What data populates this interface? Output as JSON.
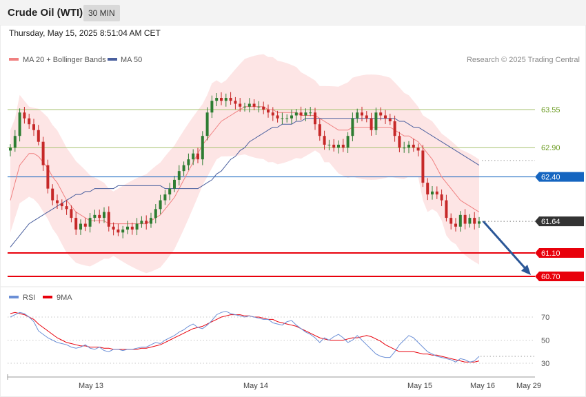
{
  "header": {
    "title": "Crude Oil (WTI)",
    "interval": "30 MIN",
    "datetime": "Thursday, May 15, 2025 8:51:04 AM CET"
  },
  "copyright": "Research © 2025 Trading Central",
  "colors": {
    "bollinger_fill": "#fde0e0",
    "ma20": "#f08080",
    "ma50": "#4a5f9e",
    "up_candle": "#2e7d32",
    "down_candle": "#c62828",
    "resistance": "#a6c26e",
    "pivot": "#1565c0",
    "support": "#e8000b",
    "last": "#333333",
    "rsi": "#6b8fd6",
    "rsi_ma": "#e8000b",
    "arrow": "#2b5797"
  },
  "chart_data": [
    {
      "type": "candlestick",
      "legend": [
        {
          "name": "MA 20 + Bollinger Bands",
          "color": "#f08080"
        },
        {
          "name": "MA 50",
          "color": "#4a5f9e"
        }
      ],
      "legend_placement": "top-left",
      "x_ticks": [
        "May 13",
        "May 14",
        "May 15",
        "May 16",
        "May 29"
      ],
      "ylim": [
        60.6,
        64.5
      ],
      "levels": [
        {
          "value": 63.55,
          "label": "63.55",
          "kind": "resistance"
        },
        {
          "value": 62.9,
          "label": "62.90",
          "kind": "resistance"
        },
        {
          "value": 62.4,
          "label": "62.40",
          "kind": "pivot"
        },
        {
          "value": 61.64,
          "label": "61.64",
          "kind": "last"
        },
        {
          "value": 61.1,
          "label": "61.10",
          "kind": "support"
        },
        {
          "value": 60.7,
          "label": "60.70",
          "kind": "support"
        }
      ],
      "close": [
        62.9,
        63.1,
        63.5,
        63.4,
        63.3,
        63.2,
        63.0,
        62.6,
        62.2,
        62.0,
        61.95,
        61.9,
        61.85,
        61.7,
        61.5,
        61.6,
        61.55,
        61.7,
        61.75,
        61.7,
        61.8,
        61.55,
        61.5,
        61.45,
        61.5,
        61.55,
        61.5,
        61.6,
        61.65,
        61.6,
        61.7,
        61.85,
        62.0,
        62.1,
        62.2,
        62.35,
        62.5,
        62.6,
        62.7,
        62.8,
        62.7,
        63.1,
        63.5,
        63.7,
        63.75,
        63.7,
        63.75,
        63.7,
        63.65,
        63.6,
        63.6,
        63.65,
        63.6,
        63.6,
        63.55,
        63.5,
        63.45,
        63.4,
        63.4,
        63.4,
        63.45,
        63.5,
        63.45,
        63.5,
        63.5,
        63.3,
        63.1,
        62.95,
        62.95,
        62.9,
        62.95,
        62.9,
        63.1,
        63.4,
        63.5,
        63.45,
        63.4,
        63.2,
        63.5,
        63.45,
        63.4,
        63.35,
        63.1,
        62.9,
        62.9,
        62.95,
        62.9,
        62.85,
        62.3,
        62.1,
        62.15,
        62.1,
        62.0,
        61.7,
        61.6,
        61.55,
        61.75,
        61.6,
        61.7,
        61.6,
        61.64
      ],
      "series": [
        {
          "name": "MA 20 + Bollinger Bands",
          "values": [
            62.0,
            62.3,
            62.6,
            62.7,
            62.8,
            62.8,
            62.75,
            62.65,
            62.55,
            62.4,
            62.3,
            62.15,
            62.0,
            61.9,
            61.8,
            61.75,
            61.7,
            61.65,
            61.65,
            61.65,
            61.65,
            61.6,
            61.6,
            61.6,
            61.6,
            61.6,
            61.6,
            61.6,
            61.6,
            61.6,
            61.65,
            61.7,
            61.75,
            61.85,
            61.95,
            62.05,
            62.2,
            62.35,
            62.5,
            62.65,
            62.8,
            62.95,
            63.05,
            63.15,
            63.25,
            63.35,
            63.4,
            63.45,
            63.5,
            63.55,
            63.6,
            63.6,
            63.6,
            63.6,
            63.6,
            63.55,
            63.55,
            63.5,
            63.5,
            63.5,
            63.5,
            63.5,
            63.45,
            63.45,
            63.45,
            63.45,
            63.4,
            63.35,
            63.3,
            63.25,
            63.2,
            63.2,
            63.2,
            63.25,
            63.25,
            63.25,
            63.25,
            63.25,
            63.25,
            63.25,
            63.25,
            63.25,
            63.2,
            63.15,
            63.1,
            63.1,
            63.05,
            63.0,
            62.9,
            62.8,
            62.7,
            62.55,
            62.4,
            62.3,
            62.2,
            62.1,
            62.0,
            61.95,
            61.9,
            61.85,
            61.8
          ]
        },
        {
          "name": "MA 50",
          "values": [
            61.2,
            61.3,
            61.4,
            61.5,
            61.6,
            61.65,
            61.7,
            61.75,
            61.8,
            61.85,
            61.9,
            61.95,
            62.0,
            62.05,
            62.1,
            62.1,
            62.15,
            62.15,
            62.2,
            62.2,
            62.2,
            62.2,
            62.2,
            62.25,
            62.25,
            62.25,
            62.25,
            62.25,
            62.25,
            62.25,
            62.25,
            62.25,
            62.25,
            62.2,
            62.2,
            62.2,
            62.2,
            62.2,
            62.2,
            62.2,
            62.2,
            62.25,
            62.3,
            62.35,
            62.45,
            62.5,
            62.6,
            62.7,
            62.75,
            62.85,
            62.9,
            63.0,
            63.05,
            63.1,
            63.15,
            63.2,
            63.25,
            63.25,
            63.3,
            63.3,
            63.3,
            63.35,
            63.35,
            63.4,
            63.4,
            63.4,
            63.4,
            63.4,
            63.4,
            63.4,
            63.4,
            63.4,
            63.4,
            63.4,
            63.4,
            63.4,
            63.4,
            63.4,
            63.4,
            63.4,
            63.4,
            63.4,
            63.4,
            63.35,
            63.35,
            63.3,
            63.25,
            63.25,
            63.2,
            63.15,
            63.1,
            63.05,
            63.0,
            62.95,
            62.9,
            62.85,
            62.8,
            62.75,
            62.7,
            62.65,
            62.6
          ]
        }
      ]
    },
    {
      "type": "line",
      "legend": [
        {
          "name": "RSI",
          "color": "#6b8fd6"
        },
        {
          "name": "9MA",
          "color": "#e8000b"
        }
      ],
      "ylim": [
        20,
        85
      ],
      "y_ticks": [
        70,
        50,
        30
      ],
      "series": [
        {
          "name": "RSI",
          "values": [
            70,
            72,
            74,
            73,
            70,
            66,
            58,
            55,
            52,
            50,
            48,
            47,
            46,
            44,
            43,
            44,
            46,
            43,
            42,
            44,
            41,
            40,
            42,
            42,
            41,
            42,
            42,
            43,
            44,
            44,
            46,
            48,
            47,
            50,
            52,
            54,
            57,
            59,
            62,
            64,
            61,
            60,
            63,
            67,
            72,
            74,
            75,
            73,
            72,
            71,
            70,
            71,
            70,
            69,
            68,
            68,
            65,
            64,
            63,
            66,
            67,
            63,
            60,
            57,
            55,
            52,
            48,
            52,
            50,
            53,
            55,
            52,
            48,
            50,
            54,
            50,
            46,
            42,
            38,
            36,
            35,
            35,
            40,
            46,
            50,
            54,
            52,
            48,
            44,
            40,
            38,
            36,
            35,
            34,
            33,
            31,
            34,
            33,
            31,
            32,
            36
          ]
        },
        {
          "name": "9MA",
          "values": [
            73,
            74,
            73,
            72,
            70,
            68,
            64,
            61,
            58,
            55,
            52,
            50,
            48,
            47,
            46,
            45,
            45,
            44,
            44,
            44,
            43,
            43,
            42,
            42,
            42,
            42,
            42,
            42,
            43,
            43,
            44,
            45,
            46,
            48,
            50,
            52,
            54,
            56,
            58,
            60,
            61,
            62,
            64,
            66,
            68,
            70,
            71,
            72,
            72,
            72,
            71,
            71,
            70,
            70,
            69,
            68,
            68,
            66,
            65,
            64,
            63,
            62,
            60,
            58,
            56,
            54,
            52,
            51,
            50,
            50,
            50,
            50,
            51,
            52,
            52,
            53,
            54,
            53,
            51,
            49,
            46,
            44,
            42,
            40,
            40,
            40,
            40,
            39,
            38,
            38,
            37,
            37,
            36,
            35,
            34,
            33,
            32,
            31,
            31,
            31,
            32
          ]
        }
      ]
    }
  ]
}
